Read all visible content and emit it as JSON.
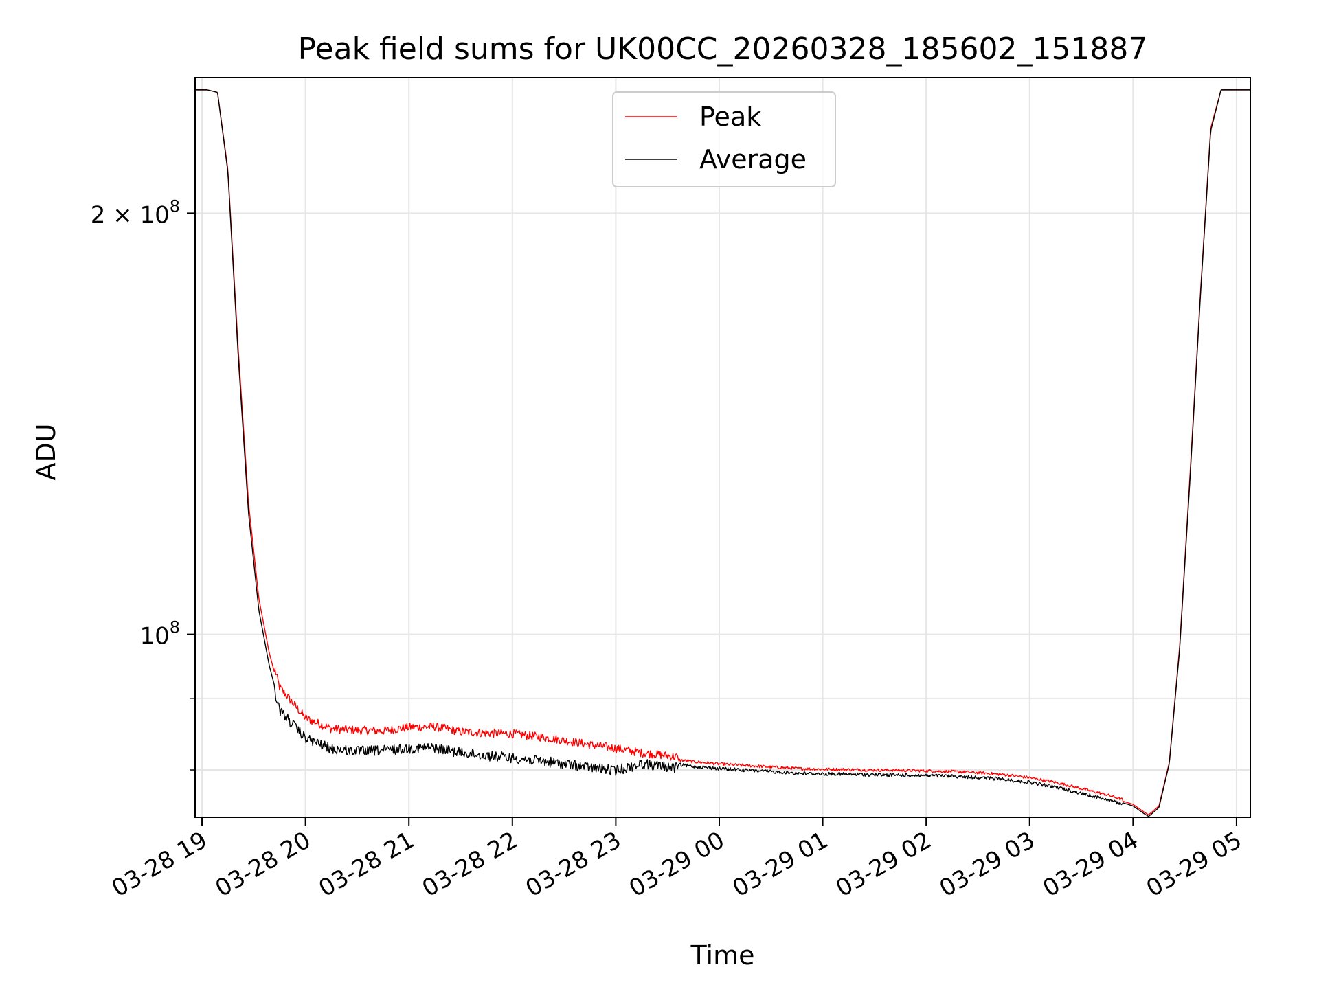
{
  "chart_data": {
    "type": "line",
    "title": "Peak field sums for UK00CC_20260328_185602_151887",
    "xlabel": "Time",
    "ylabel": "ADU",
    "yscale": "log",
    "ylim": [
      74000000,
      250000000
    ],
    "xlim_hours": [
      18.9333,
      29.1333
    ],
    "x_ticks": [
      {
        "h": 19,
        "label": "03-28 19"
      },
      {
        "h": 20,
        "label": "03-28 20"
      },
      {
        "h": 21,
        "label": "03-28 21"
      },
      {
        "h": 22,
        "label": "03-28 22"
      },
      {
        "h": 23,
        "label": "03-28 23"
      },
      {
        "h": 24,
        "label": "03-29 00"
      },
      {
        "h": 25,
        "label": "03-29 01"
      },
      {
        "h": 26,
        "label": "03-29 02"
      },
      {
        "h": 27,
        "label": "03-29 03"
      },
      {
        "h": 28,
        "label": "03-29 04"
      },
      {
        "h": 29,
        "label": "03-29 05"
      }
    ],
    "y_major_ticks": [
      {
        "v": 100000000,
        "mant": "",
        "base": "10",
        "exp": "8"
      },
      {
        "v": 200000000,
        "mant": "2 × ",
        "base": "10",
        "exp": "8"
      }
    ],
    "y_minor_ticks": [
      80000000,
      90000000
    ],
    "grid": true,
    "legend_position": "upper center",
    "legend": [
      {
        "name": "Peak",
        "color": "#ff0000"
      },
      {
        "name": "Average",
        "color": "#000000"
      }
    ],
    "series": [
      {
        "name": "Peak",
        "color": "#ff0000",
        "x_hours": [
          18.93,
          19.05,
          19.15,
          19.25,
          19.35,
          19.45,
          19.55,
          19.65,
          19.75,
          20.0,
          20.25,
          20.5,
          20.75,
          21.0,
          21.25,
          21.5,
          21.75,
          22.0,
          22.25,
          22.5,
          22.75,
          23.0,
          23.25,
          23.5,
          23.75,
          24.0,
          24.25,
          24.5,
          24.75,
          25.0,
          25.25,
          25.5,
          25.75,
          26.0,
          26.25,
          26.5,
          26.75,
          27.0,
          27.25,
          27.5,
          27.75,
          28.0,
          28.1,
          28.15,
          28.25,
          28.35,
          28.45,
          28.55,
          28.65,
          28.75,
          28.85,
          28.9,
          29.13
        ],
        "values": [
          245000000,
          245000000,
          244000000,
          215000000,
          160000000,
          124000000,
          106000000,
          97000000,
          91000000,
          86500000,
          85000000,
          84800000,
          84700000,
          85200000,
          85300000,
          84600000,
          84400000,
          84300000,
          83900000,
          83400000,
          82800000,
          82300000,
          81700000,
          81300000,
          80900000,
          80600000,
          80400000,
          80200000,
          80000000,
          79900000,
          79850000,
          79800000,
          79750000,
          79700000,
          79600000,
          79450000,
          79200000,
          78800000,
          78200000,
          77400000,
          76600000,
          75600000,
          74700000,
          74300000,
          75400000,
          81000000,
          98000000,
          130000000,
          175000000,
          230000000,
          245000000,
          245000000,
          245000000
        ]
      },
      {
        "name": "Average",
        "color": "#000000",
        "x_hours": [
          18.93,
          19.05,
          19.15,
          19.25,
          19.35,
          19.45,
          19.55,
          19.65,
          19.75,
          20.0,
          20.25,
          20.5,
          20.75,
          21.0,
          21.25,
          21.5,
          21.75,
          22.0,
          22.25,
          22.5,
          22.75,
          23.0,
          23.25,
          23.5,
          23.75,
          24.0,
          24.25,
          24.5,
          24.75,
          25.0,
          25.25,
          25.5,
          25.75,
          26.0,
          26.25,
          26.5,
          26.75,
          27.0,
          27.25,
          27.5,
          27.75,
          28.0,
          28.1,
          28.15,
          28.25,
          28.35,
          28.45,
          28.55,
          28.65,
          28.75,
          28.85,
          28.9,
          29.13
        ],
        "values": [
          245000000,
          245000000,
          244000000,
          214000000,
          158000000,
          122000000,
          104000000,
          95000000,
          89000000,
          85000000,
          83500000,
          83200000,
          83300000,
          83600000,
          83700000,
          83000000,
          82600000,
          82300000,
          81900000,
          81500000,
          81000000,
          80600000,
          81500000,
          81100000,
          80700000,
          80400000,
          80200000,
          80000000,
          79800000,
          79700000,
          79650000,
          79600000,
          79550000,
          79500000,
          79400000,
          79250000,
          79000000,
          78600000,
          78000000,
          77200000,
          76400000,
          75400000,
          74500000,
          74100000,
          75200000,
          80800000,
          97500000,
          129000000,
          174000000,
          229000000,
          245000000,
          245000000,
          245000000
        ]
      }
    ]
  }
}
